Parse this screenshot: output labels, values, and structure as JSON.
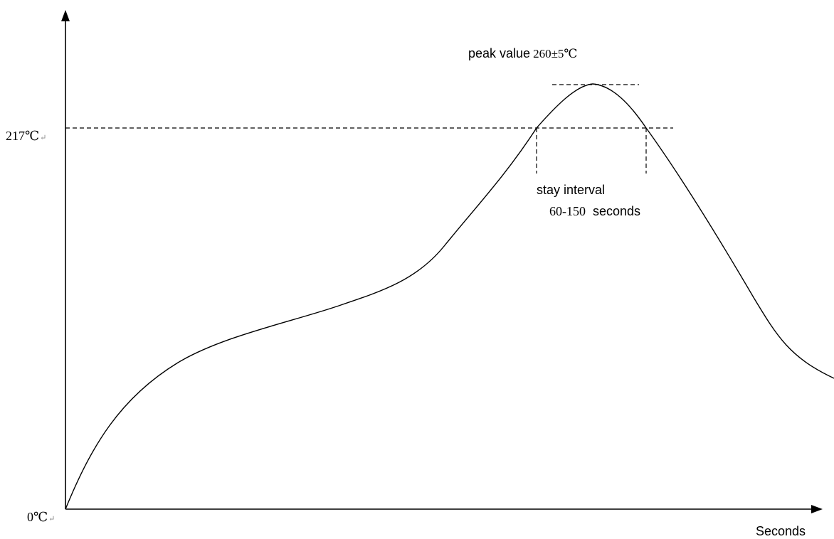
{
  "diagram": {
    "y_axis": {
      "top_label": "217℃",
      "bottom_label": "0℃",
      "return_mark": "↵"
    },
    "x_axis": {
      "label": "Seconds"
    },
    "peak": {
      "prefix": "peak value",
      "value": "260±5℃"
    },
    "stay": {
      "line1": "stay interval",
      "range": "60-150",
      "unit": "seconds"
    },
    "colors": {
      "line": "#000000",
      "background": "#ffffff"
    }
  }
}
